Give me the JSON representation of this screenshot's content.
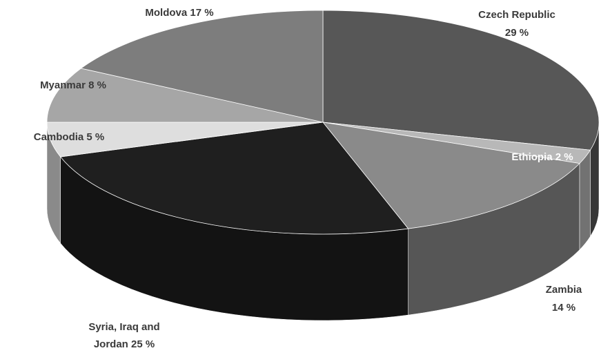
{
  "chart_data": {
    "type": "pie",
    "style": "3d",
    "title": "",
    "slices": [
      {
        "name": "Czech Republic",
        "value": 29,
        "value_label": "29 %",
        "color": "#575757"
      },
      {
        "name": "Ethiopia",
        "value": 2,
        "value_label": "2 %",
        "color": "#b8b8b8"
      },
      {
        "name": "Zambia",
        "value": 14,
        "value_label": "14 %",
        "color": "#8a8a8a"
      },
      {
        "name": "Syria, Iraq and Jordan",
        "value": 25,
        "value_label": "25 %",
        "color": "#1f1f1f"
      },
      {
        "name": "Cambodia",
        "value": 5,
        "value_label": "5 %",
        "color": "#dedede"
      },
      {
        "name": "Myanmar",
        "value": 8,
        "value_label": "8 %",
        "color": "#a6a6a6"
      },
      {
        "name": "Moldova",
        "value": 17,
        "value_label": "17 %",
        "color": "#7d7d7d"
      }
    ],
    "labels": [
      {
        "slice": 0,
        "lines": [
          "Czech Republic",
          "29 %"
        ],
        "color": "#3a3a3a"
      },
      {
        "slice": 1,
        "lines": [
          "Ethiopia 2 %"
        ],
        "color": "#ffffff"
      },
      {
        "slice": 2,
        "lines": [
          "Zambia",
          "14 %"
        ],
        "color": "#3a3a3a"
      },
      {
        "slice": 3,
        "lines": [
          "Syria, Iraq and",
          "Jordan 25 %"
        ],
        "color": "#3a3a3a"
      },
      {
        "slice": 4,
        "lines": [
          "Cambodia 5 %"
        ],
        "color": "#3a3a3a"
      },
      {
        "slice": 5,
        "lines": [
          "Myanmar 8 %"
        ],
        "color": "#3a3a3a"
      },
      {
        "slice": 6,
        "lines": [
          "Moldova 17 %"
        ],
        "color": "#3a3a3a"
      }
    ]
  }
}
